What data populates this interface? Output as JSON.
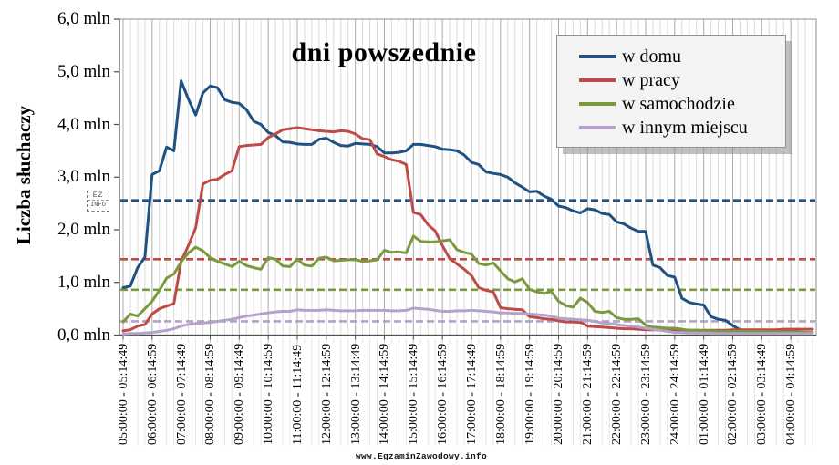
{
  "chart_data": {
    "type": "line",
    "title": "dni powszednie",
    "y_axis_title": "Liczba słuchaczy",
    "unit": "mln",
    "ylim": [
      0.0,
      6.0
    ],
    "y_ticks": [
      "0,0 mln",
      "1,0 mln",
      "2,0 mln",
      "3,0 mln",
      "4,0 mln",
      "5,0 mln",
      "6,0 mln"
    ],
    "grid": "vertical, quarter-hour minor and hourly major, no horizontal gridlines",
    "legend_position": "top-right",
    "points_per_hour": 4,
    "x_labels": [
      "05:00:00 - 05:14:49",
      "06:00:00 - 06:14:59",
      "07:00:00 - 07:14:49",
      "08:00:00 - 08:14:59",
      "09:00:00 - 09:14:49",
      "10:00:00 - 10:14:59",
      "11:00:00 - 11:14:49",
      "12:00:00 - 12:14:59",
      "13:00:00 - 13:14:49",
      "14:00:00 - 14:14:59",
      "15:00:00 - 15:14:49",
      "16:00:00 - 16:14:59",
      "17:00:00 - 17:14:49",
      "18:00:00 - 18:14:59",
      "19:00:00 - 19:14:59",
      "20:00:00 - 20:14:59",
      "21:00:00 - 21:14:59",
      "22:00:00 - 22:14:59",
      "23:00:00 - 23:14:59",
      "24:00:00 - 24:14:59",
      "01:00:00 - 01:14:49",
      "02:00:00 - 02:14:59",
      "03:00:00 - 03:14:49",
      "04:00:00 - 04:14:59"
    ],
    "series": [
      {
        "name": "w domu",
        "color": "#1F5182",
        "average_line": 2.56,
        "values": [
          0.9,
          0.93,
          1.28,
          1.48,
          3.05,
          3.12,
          3.57,
          3.5,
          4.83,
          4.48,
          4.18,
          4.6,
          4.73,
          4.7,
          4.47,
          4.42,
          4.4,
          4.28,
          4.06,
          4.0,
          3.85,
          3.79,
          3.67,
          3.66,
          3.63,
          3.62,
          3.62,
          3.72,
          3.74,
          3.66,
          3.6,
          3.59,
          3.64,
          3.63,
          3.62,
          3.58,
          3.46,
          3.46,
          3.47,
          3.5,
          3.62,
          3.62,
          3.6,
          3.58,
          3.53,
          3.52,
          3.5,
          3.42,
          3.28,
          3.24,
          3.1,
          3.07,
          3.05,
          3.0,
          2.89,
          2.81,
          2.72,
          2.73,
          2.64,
          2.58,
          2.45,
          2.42,
          2.36,
          2.32,
          2.4,
          2.38,
          2.31,
          2.29,
          2.15,
          2.11,
          2.03,
          1.97,
          1.97,
          1.33,
          1.28,
          1.13,
          1.1,
          0.7,
          0.62,
          0.59,
          0.57,
          0.35,
          0.3,
          0.28,
          0.18,
          0.1,
          0.08,
          0.08,
          0.08,
          0.07,
          0.07,
          0.06,
          0.06,
          0.05,
          0.05,
          0.04
        ]
      },
      {
        "name": "w pracy",
        "color": "#BE4B48",
        "average_line": 1.44,
        "values": [
          0.08,
          0.1,
          0.17,
          0.2,
          0.4,
          0.5,
          0.55,
          0.6,
          1.4,
          1.7,
          2.04,
          2.87,
          2.94,
          2.96,
          3.05,
          3.12,
          3.58,
          3.6,
          3.61,
          3.62,
          3.75,
          3.82,
          3.9,
          3.92,
          3.94,
          3.92,
          3.9,
          3.88,
          3.87,
          3.86,
          3.88,
          3.87,
          3.82,
          3.73,
          3.71,
          3.44,
          3.39,
          3.33,
          3.3,
          3.24,
          2.33,
          2.29,
          2.1,
          1.98,
          1.7,
          1.45,
          1.35,
          1.25,
          1.13,
          0.9,
          0.85,
          0.82,
          0.52,
          0.5,
          0.49,
          0.48,
          0.35,
          0.33,
          0.31,
          0.3,
          0.27,
          0.25,
          0.25,
          0.24,
          0.17,
          0.16,
          0.15,
          0.14,
          0.13,
          0.12,
          0.12,
          0.11,
          0.1,
          0.1,
          0.1,
          0.09,
          0.09,
          0.09,
          0.09,
          0.09,
          0.09,
          0.09,
          0.09,
          0.09,
          0.1,
          0.1,
          0.1,
          0.1,
          0.1,
          0.1,
          0.1,
          0.11,
          0.11,
          0.11,
          0.11,
          0.11
        ]
      },
      {
        "name": "w samochodzie",
        "color": "#7A9A3D",
        "average_line": 0.86,
        "values": [
          0.25,
          0.4,
          0.36,
          0.5,
          0.64,
          0.85,
          1.08,
          1.16,
          1.39,
          1.56,
          1.67,
          1.6,
          1.47,
          1.4,
          1.35,
          1.3,
          1.4,
          1.32,
          1.28,
          1.25,
          1.47,
          1.44,
          1.31,
          1.3,
          1.44,
          1.33,
          1.31,
          1.46,
          1.48,
          1.41,
          1.42,
          1.43,
          1.43,
          1.4,
          1.41,
          1.43,
          1.61,
          1.57,
          1.58,
          1.56,
          1.88,
          1.78,
          1.77,
          1.77,
          1.79,
          1.81,
          1.62,
          1.57,
          1.54,
          1.36,
          1.33,
          1.37,
          1.22,
          1.07,
          1.01,
          1.07,
          0.87,
          0.82,
          0.79,
          0.83,
          0.64,
          0.56,
          0.53,
          0.7,
          0.62,
          0.45,
          0.43,
          0.45,
          0.33,
          0.3,
          0.3,
          0.31,
          0.19,
          0.15,
          0.14,
          0.13,
          0.13,
          0.11,
          0.09,
          0.09,
          0.08,
          0.08,
          0.07,
          0.07,
          0.07,
          0.07,
          0.07,
          0.07,
          0.07,
          0.06,
          0.06,
          0.06,
          0.06,
          0.06,
          0.05,
          0.05
        ]
      },
      {
        "name": "w innym miejscu",
        "color": "#B3A3C8",
        "average_line": 0.26,
        "values": [
          0.02,
          0.03,
          0.03,
          0.04,
          0.05,
          0.07,
          0.09,
          0.12,
          0.17,
          0.2,
          0.22,
          0.23,
          0.24,
          0.26,
          0.28,
          0.3,
          0.33,
          0.36,
          0.38,
          0.4,
          0.42,
          0.44,
          0.45,
          0.45,
          0.48,
          0.47,
          0.47,
          0.47,
          0.48,
          0.47,
          0.46,
          0.46,
          0.46,
          0.47,
          0.47,
          0.47,
          0.47,
          0.46,
          0.46,
          0.47,
          0.51,
          0.5,
          0.49,
          0.47,
          0.45,
          0.45,
          0.46,
          0.46,
          0.47,
          0.46,
          0.45,
          0.44,
          0.42,
          0.42,
          0.41,
          0.41,
          0.4,
          0.39,
          0.38,
          0.36,
          0.32,
          0.31,
          0.3,
          0.29,
          0.28,
          0.26,
          0.23,
          0.22,
          0.2,
          0.18,
          0.17,
          0.15,
          0.13,
          0.11,
          0.09,
          0.07,
          0.05,
          0.05,
          0.04,
          0.04,
          0.04,
          0.03,
          0.03,
          0.03,
          0.03,
          0.03,
          0.03,
          0.03,
          0.03,
          0.03,
          0.03,
          0.03,
          0.03,
          0.03,
          0.03,
          0.03
        ]
      }
    ]
  },
  "watermarks": {
    "logo_line1": "EZ",
    "logo_line2": "INFO",
    "url": "www.EgzaminZawodowy.info"
  }
}
